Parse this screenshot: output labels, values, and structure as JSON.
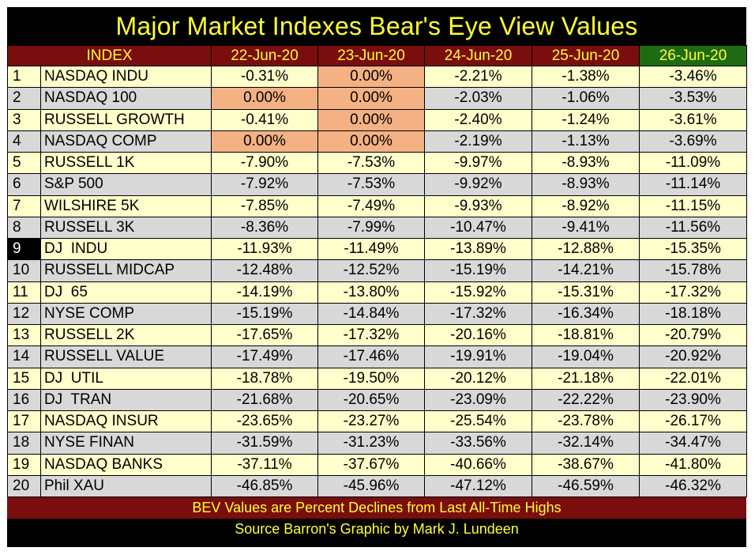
{
  "chart_data": {
    "type": "table",
    "title": "Major Market Indexes Bear's Eye View Values",
    "columns": [
      "INDEX",
      "22-Jun-20",
      "23-Jun-20",
      "24-Jun-20",
      "25-Jun-20",
      "26-Jun-20"
    ],
    "highlighted_column": "26-Jun-20",
    "highlighted_rank": "9",
    "rows": [
      {
        "rank": "1",
        "name": "NASDAQ INDU",
        "values": [
          "-0.31%",
          "0.00%",
          "-2.21%",
          "-1.38%",
          "-3.46%"
        ]
      },
      {
        "rank": "2",
        "name": "NASDAQ 100",
        "values": [
          "0.00%",
          "0.00%",
          "-2.03%",
          "-1.06%",
          "-3.53%"
        ]
      },
      {
        "rank": "3",
        "name": "RUSSELL GROWTH",
        "values": [
          "-0.41%",
          "0.00%",
          "-2.40%",
          "-1.24%",
          "-3.61%"
        ]
      },
      {
        "rank": "4",
        "name": "NASDAQ COMP",
        "values": [
          "0.00%",
          "0.00%",
          "-2.19%",
          "-1.13%",
          "-3.69%"
        ]
      },
      {
        "rank": "5",
        "name": "RUSSELL 1K",
        "values": [
          "-7.90%",
          "-7.53%",
          "-9.97%",
          "-8.93%",
          "-11.09%"
        ]
      },
      {
        "rank": "6",
        "name": "S&P 500",
        "values": [
          "-7.92%",
          "-7.53%",
          "-9.92%",
          "-8.93%",
          "-11.14%"
        ]
      },
      {
        "rank": "7",
        "name": "WILSHIRE 5K",
        "values": [
          "-7.85%",
          "-7.49%",
          "-9.93%",
          "-8.92%",
          "-11.15%"
        ]
      },
      {
        "rank": "8",
        "name": "RUSSELL 3K",
        "values": [
          "-8.36%",
          "-7.99%",
          "-10.47%",
          "-9.41%",
          "-11.56%"
        ]
      },
      {
        "rank": "9",
        "name": "DJ  INDU",
        "values": [
          "-11.93%",
          "-11.49%",
          "-13.89%",
          "-12.88%",
          "-15.35%"
        ]
      },
      {
        "rank": "10",
        "name": "RUSSELL MIDCAP",
        "values": [
          "-12.48%",
          "-12.52%",
          "-15.19%",
          "-14.21%",
          "-15.78%"
        ]
      },
      {
        "rank": "11",
        "name": "DJ  65",
        "values": [
          "-14.19%",
          "-13.80%",
          "-15.92%",
          "-15.31%",
          "-17.32%"
        ]
      },
      {
        "rank": "12",
        "name": "NYSE COMP",
        "values": [
          "-15.19%",
          "-14.84%",
          "-17.32%",
          "-16.34%",
          "-18.18%"
        ]
      },
      {
        "rank": "13",
        "name": "RUSSELL 2K",
        "values": [
          "-17.65%",
          "-17.32%",
          "-20.16%",
          "-18.81%",
          "-20.79%"
        ]
      },
      {
        "rank": "14",
        "name": "RUSSELL VALUE",
        "values": [
          "-17.49%",
          "-17.46%",
          "-19.91%",
          "-19.04%",
          "-20.92%"
        ]
      },
      {
        "rank": "15",
        "name": "DJ  UTIL",
        "values": [
          "-18.78%",
          "-19.50%",
          "-20.12%",
          "-21.18%",
          "-22.01%"
        ]
      },
      {
        "rank": "16",
        "name": "DJ  TRAN",
        "values": [
          "-21.68%",
          "-20.65%",
          "-23.09%",
          "-22.22%",
          "-23.90%"
        ]
      },
      {
        "rank": "17",
        "name": "NASDAQ INSUR",
        "values": [
          "-23.65%",
          "-23.27%",
          "-25.54%",
          "-23.78%",
          "-26.17%"
        ]
      },
      {
        "rank": "18",
        "name": "NYSE FINAN",
        "values": [
          "-31.59%",
          "-31.23%",
          "-33.56%",
          "-32.14%",
          "-34.47%"
        ]
      },
      {
        "rank": "19",
        "name": "NASDAQ BANKS",
        "values": [
          "-37.11%",
          "-37.67%",
          "-40.66%",
          "-38.67%",
          "-41.80%"
        ]
      },
      {
        "rank": "20",
        "name": "Phil XAU",
        "values": [
          "-46.85%",
          "-45.96%",
          "-47.12%",
          "-46.59%",
          "-46.32%"
        ]
      }
    ],
    "footer_note": "BEV Values are Percent Declines from Last All-Time Highs",
    "source_note": "Source Barron's   Graphic by Mark J. Lundeen"
  },
  "colors": {
    "title_text": "#ffff33",
    "header_bg": "#7a0d0d",
    "header_highlight_bg": "#1f6b13",
    "row_odd_bg": "#ffffcc",
    "row_even_bg": "#d8d8d8",
    "zero_value_bg": "#f4b183"
  }
}
